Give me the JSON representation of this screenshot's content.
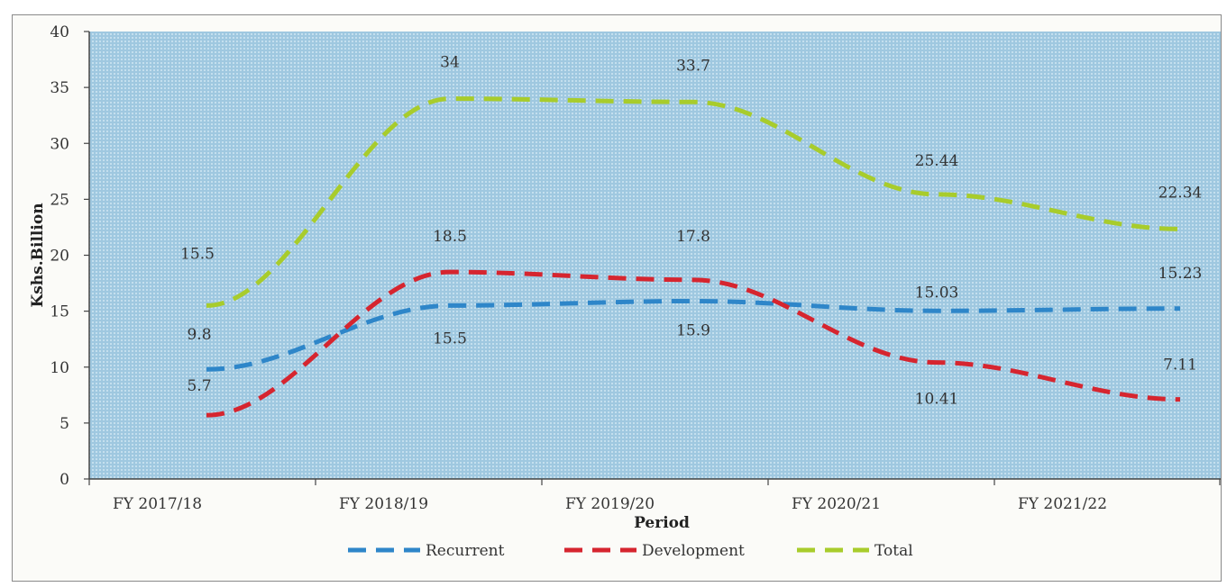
{
  "chart_data": {
    "type": "line",
    "xlabel": "Period",
    "ylabel": "Kshs.Billion",
    "categories": [
      "FY 2017/18",
      "FY 2018/19",
      "FY 2019/20",
      "FY 2020/21",
      "FY 2021/22"
    ],
    "ylim": [
      0,
      40
    ],
    "yticks": [
      0,
      5,
      10,
      15,
      20,
      25,
      30,
      35,
      40
    ],
    "grid": false,
    "legend_position": "bottom",
    "series": [
      {
        "name": "Recurrent",
        "color": "#2e86c9",
        "values": [
          9.8,
          15.5,
          15.9,
          15.03,
          15.23
        ],
        "labels": [
          "9.8",
          "15.5",
          "15.9",
          "15.03",
          "15.23"
        ]
      },
      {
        "name": "Development",
        "color": "#d6252f",
        "values": [
          5.7,
          18.5,
          17.8,
          10.41,
          7.11
        ],
        "labels": [
          "5.7",
          "18.5",
          "17.8",
          "10.41",
          "7.11"
        ]
      },
      {
        "name": "Total",
        "color": "#a8cc2c",
        "values": [
          15.5,
          34,
          33.7,
          25.44,
          22.34
        ],
        "labels": [
          "15.5",
          "34",
          "33.7",
          "25.44",
          "22.34"
        ]
      }
    ],
    "plot_background": "#a9cde3"
  }
}
